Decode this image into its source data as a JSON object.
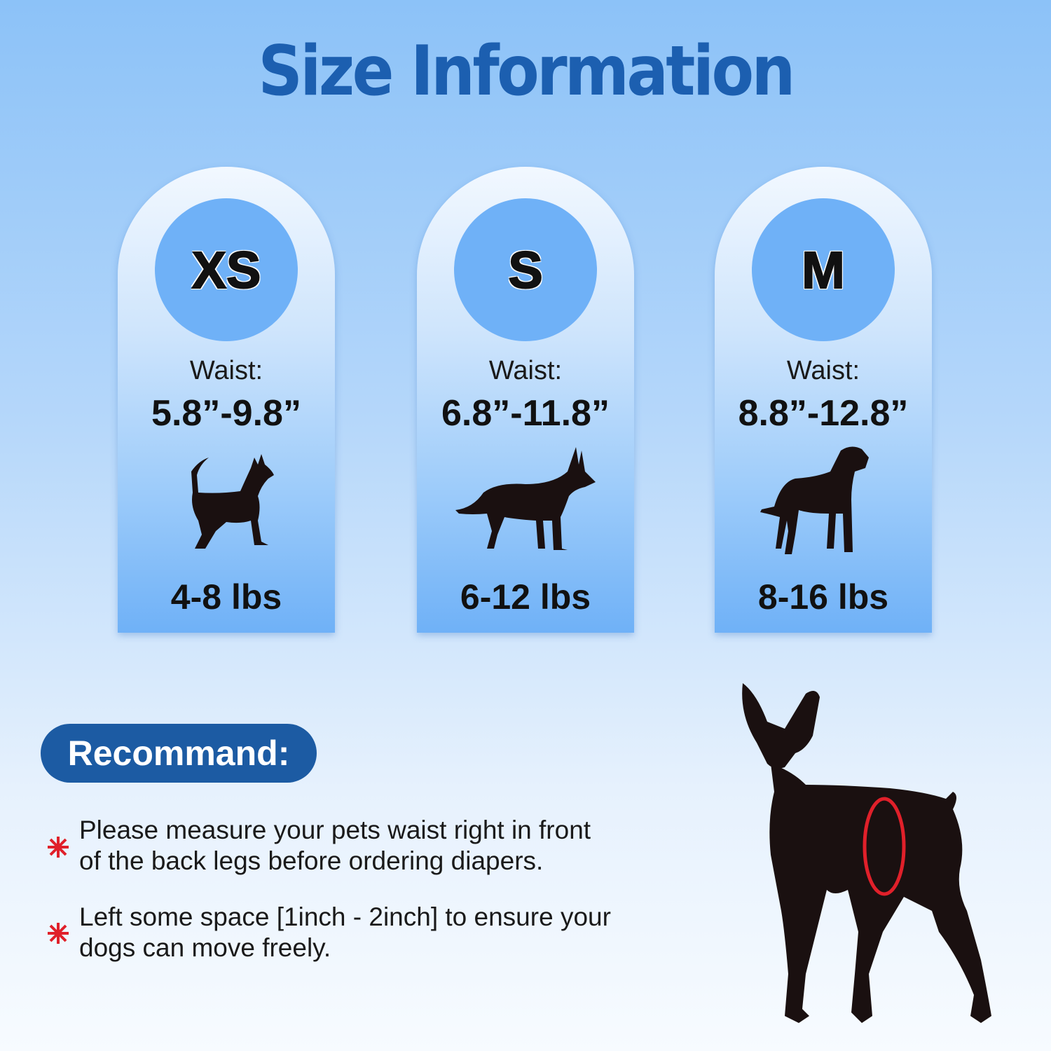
{
  "title": "Size Information",
  "sizes": [
    {
      "size": "XS",
      "waist_label": "Waist:",
      "waist": "5.8”-9.8”",
      "weight": "4-8 lbs",
      "dog_icon": "chihuahua-silhouette-icon"
    },
    {
      "size": "S",
      "waist_label": "Waist:",
      "waist": "6.8”-11.8”",
      "weight": "6-12 lbs",
      "dog_icon": "shepherd-silhouette-icon"
    },
    {
      "size": "M",
      "waist_label": "Waist:",
      "waist": "8.8”-12.8”",
      "weight": "8-16 lbs",
      "dog_icon": "great-dane-silhouette-icon"
    }
  ],
  "recommend": {
    "label": "Recommand:",
    "tips": [
      {
        "line1": "Please measure your pets waist right in front",
        "line2": "of the back legs before ordering diapers."
      },
      {
        "line1": "Left some space [1inch - 2inch] to ensure your",
        "line2": "dogs can move freely."
      }
    ]
  },
  "colors": {
    "title": "#1c5fb0",
    "circle": "#6fb1f7",
    "pill": "#1c5ba3",
    "bullet": "#e0202a",
    "waist_ring": "#e0202a"
  }
}
